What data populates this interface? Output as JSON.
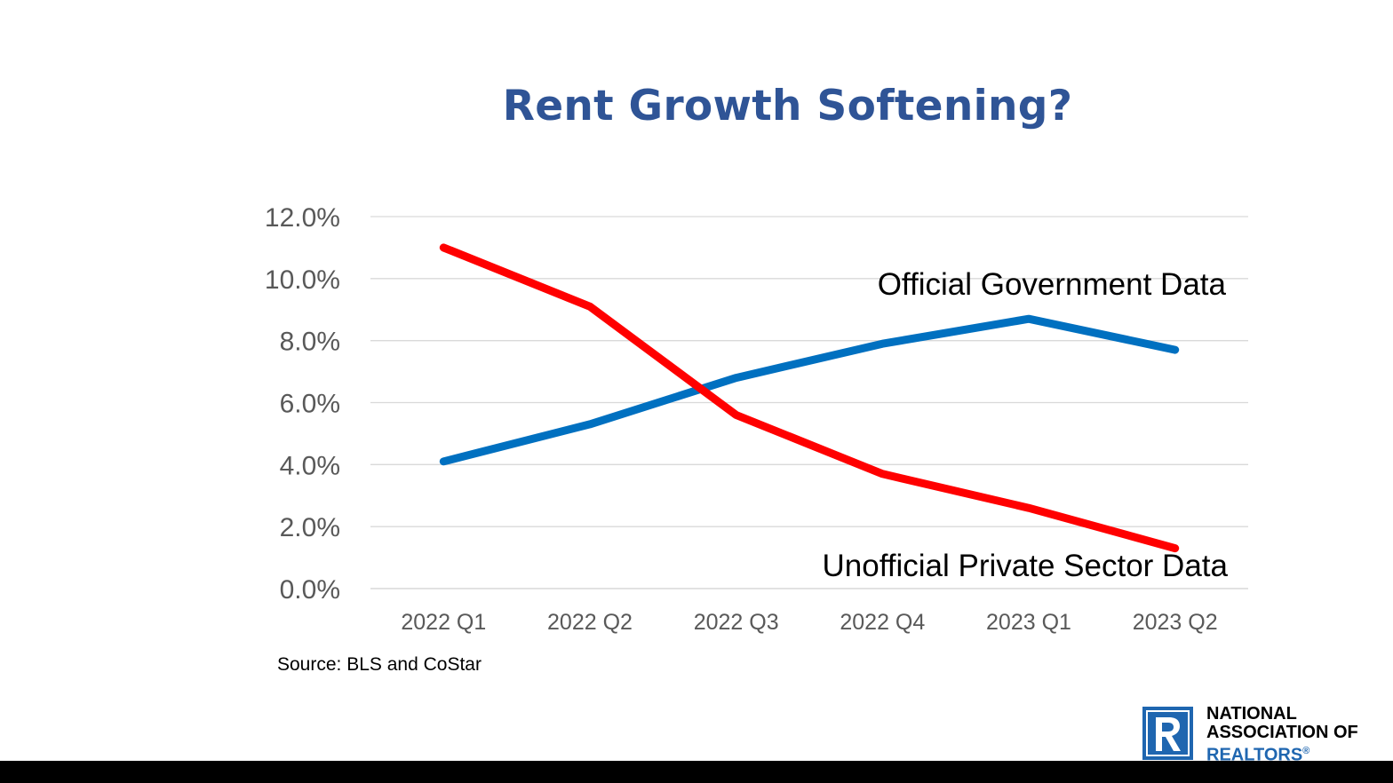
{
  "slide": {
    "title": "Rent Growth Softening?",
    "source": "Source: BLS and CoStar"
  },
  "logo": {
    "icon": "realtor-r-icon",
    "line1": "NATIONAL",
    "line2": "ASSOCIATION OF",
    "line3": "REALTORS",
    "mark": "®",
    "color": "#1f66b0"
  },
  "chart_data": {
    "type": "line",
    "title": "Rent Growth Softening?",
    "categories": [
      "2022 Q1",
      "2022 Q2",
      "2022 Q3",
      "2022 Q4",
      "2023 Q1",
      "2023 Q2"
    ],
    "series": [
      {
        "name": "Official Government Data",
        "color": "#0070c0",
        "values": [
          4.1,
          5.3,
          6.8,
          7.9,
          8.7,
          7.7
        ]
      },
      {
        "name": "Unofficial Private Sector Data",
        "color": "#ff0000",
        "values": [
          11.0,
          9.1,
          5.6,
          3.7,
          2.6,
          1.3
        ]
      }
    ],
    "ylim": [
      0,
      12
    ],
    "yticks": [
      "0.0%",
      "2.0%",
      "4.0%",
      "6.0%",
      "8.0%",
      "10.0%",
      "12.0%"
    ],
    "grid": true,
    "legend": "inline labels"
  }
}
